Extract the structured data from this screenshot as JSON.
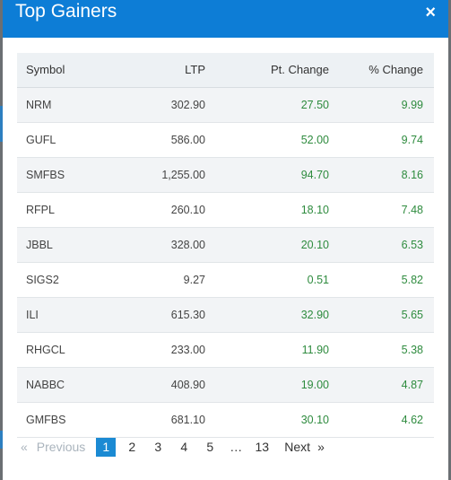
{
  "modal": {
    "title": "Top Gainers",
    "close_glyph": "×"
  },
  "table": {
    "headers": {
      "symbol": "Symbol",
      "ltp": "LTP",
      "pt_change": "Pt. Change",
      "pct_change": "% Change"
    },
    "rows": [
      {
        "symbol": "NRM",
        "ltp": "302.90",
        "pt_change": "27.50",
        "pct_change": "9.99"
      },
      {
        "symbol": "GUFL",
        "ltp": "586.00",
        "pt_change": "52.00",
        "pct_change": "9.74"
      },
      {
        "symbol": "SMFBS",
        "ltp": "1,255.00",
        "pt_change": "94.70",
        "pct_change": "8.16"
      },
      {
        "symbol": "RFPL",
        "ltp": "260.10",
        "pt_change": "18.10",
        "pct_change": "7.48"
      },
      {
        "symbol": "JBBL",
        "ltp": "328.00",
        "pt_change": "20.10",
        "pct_change": "6.53"
      },
      {
        "symbol": "SIGS2",
        "ltp": "9.27",
        "pt_change": "0.51",
        "pct_change": "5.82"
      },
      {
        "symbol": "ILI",
        "ltp": "615.30",
        "pt_change": "32.90",
        "pct_change": "5.65"
      },
      {
        "symbol": "RHGCL",
        "ltp": "233.00",
        "pt_change": "11.90",
        "pct_change": "5.38"
      },
      {
        "symbol": "NABBC",
        "ltp": "408.90",
        "pt_change": "19.00",
        "pct_change": "4.87"
      },
      {
        "symbol": "GMFBS",
        "ltp": "681.10",
        "pt_change": "30.10",
        "pct_change": "4.62"
      }
    ]
  },
  "pagination": {
    "prev_arrow": "«",
    "prev_label": "Previous",
    "pages": [
      "1",
      "2",
      "3",
      "4",
      "5"
    ],
    "active_page": "1",
    "ellipsis": "…",
    "last_page": "13",
    "next_label": "Next",
    "next_arrow": "»"
  },
  "colors": {
    "header_bg": "#0d7dd6",
    "positive": "#2e8b3e",
    "active_page_bg": "#1b8ad3"
  }
}
